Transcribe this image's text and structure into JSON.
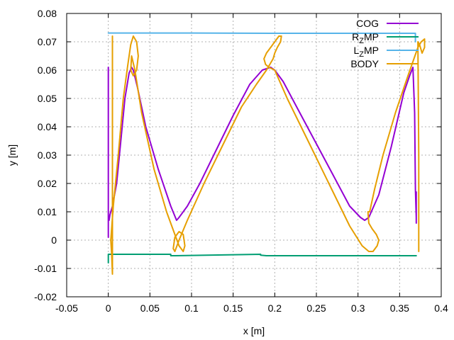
{
  "chart_data": {
    "type": "line",
    "xlabel": "x [m]",
    "ylabel": "y [m]",
    "xlim": [
      -0.05,
      0.4
    ],
    "ylim": [
      -0.02,
      0.08
    ],
    "xticks": [
      "-0.05",
      "0",
      "0.05",
      "0.1",
      "0.15",
      "0.2",
      "0.25",
      "0.3",
      "0.35",
      "0.4"
    ],
    "xtick_values": [
      -0.05,
      0,
      0.05,
      0.1,
      0.15,
      0.2,
      0.25,
      0.3,
      0.35,
      0.4
    ],
    "yticks": [
      "-0.02",
      "-0.01",
      "0",
      "0.01",
      "0.02",
      "0.03",
      "0.04",
      "0.05",
      "0.06",
      "0.07",
      "0.08"
    ],
    "ytick_values": [
      -0.02,
      -0.01,
      0,
      0.01,
      0.02,
      0.03,
      0.04,
      0.05,
      0.06,
      0.07,
      0.08
    ],
    "grid": true,
    "legend_position": "top-right",
    "series": [
      {
        "name": "COG",
        "legend_main": "COG",
        "legend_sub": "",
        "legend_suffix": "",
        "color": "#9400d3",
        "x": [
          0.0,
          0.0,
          0.0,
          0.0,
          0.001,
          0.002,
          0.005,
          0.01,
          0.015,
          0.02,
          0.025,
          0.028,
          0.03,
          0.035,
          0.045,
          0.06,
          0.075,
          0.082,
          0.085,
          0.095,
          0.11,
          0.13,
          0.15,
          0.17,
          0.185,
          0.195,
          0.2,
          0.21,
          0.23,
          0.25,
          0.27,
          0.29,
          0.303,
          0.308,
          0.313,
          0.325,
          0.34,
          0.355,
          0.362,
          0.366,
          0.368,
          0.369,
          0.37,
          0.37,
          0.37
        ],
        "y": [
          0.001,
          0.061,
          0.014,
          0.008,
          0.007,
          0.009,
          0.012,
          0.02,
          0.035,
          0.05,
          0.059,
          0.061,
          0.06,
          0.054,
          0.04,
          0.025,
          0.012,
          0.007,
          0.008,
          0.012,
          0.02,
          0.032,
          0.044,
          0.055,
          0.06,
          0.061,
          0.06,
          0.056,
          0.045,
          0.034,
          0.023,
          0.012,
          0.008,
          0.007,
          0.008,
          0.016,
          0.033,
          0.052,
          0.058,
          0.061,
          0.045,
          0.018,
          0.008,
          0.006,
          0.017
        ]
      },
      {
        "name": "RZMP",
        "legend_main": "R",
        "legend_sub": "Z",
        "legend_suffix": "MP",
        "color": "#009e73",
        "x": [
          0.0,
          0.0,
          0.0,
          0.075,
          0.075,
          0.08,
          0.183,
          0.183,
          0.19,
          0.305,
          0.305,
          0.31,
          0.37
        ],
        "y": [
          -0.008,
          -0.0055,
          -0.005,
          -0.005,
          -0.0055,
          -0.0055,
          -0.005,
          -0.0053,
          -0.0055,
          -0.0055,
          -0.0055,
          -0.0055,
          -0.0055
        ]
      },
      {
        "name": "LZMP",
        "legend_main": "L",
        "legend_sub": "Z",
        "legend_suffix": "MP",
        "color": "#56b4e9",
        "x": [
          0.0,
          0.1,
          0.2,
          0.3,
          0.369,
          0.369,
          0.369
        ],
        "y": [
          0.0731,
          0.0731,
          0.073,
          0.073,
          0.073,
          0.07,
          0.071
        ]
      },
      {
        "name": "BODY",
        "legend_main": "BODY",
        "legend_sub": "",
        "legend_suffix": "",
        "color": "#e69f00",
        "x": [
          0.005,
          0.005,
          0.004,
          0.003,
          0.006,
          0.012,
          0.018,
          0.023,
          0.027,
          0.03,
          0.034,
          0.036,
          0.034,
          0.03,
          0.027,
          0.028,
          0.032,
          0.04,
          0.055,
          0.07,
          0.08,
          0.085,
          0.09,
          0.092,
          0.09,
          0.085,
          0.08,
          0.078,
          0.08,
          0.085,
          0.095,
          0.115,
          0.14,
          0.16,
          0.178,
          0.19,
          0.198,
          0.2,
          0.203,
          0.207,
          0.208,
          0.205,
          0.2,
          0.195,
          0.19,
          0.187,
          0.189,
          0.193,
          0.2,
          0.215,
          0.24,
          0.265,
          0.29,
          0.305,
          0.313,
          0.318,
          0.323,
          0.325,
          0.322,
          0.317,
          0.313,
          0.312,
          0.314,
          0.32,
          0.33,
          0.345,
          0.36,
          0.372,
          0.376,
          0.38,
          0.38,
          0.377,
          0.374,
          0.372,
          0.373,
          0.373
        ],
        "y": [
          0.072,
          -0.012,
          -0.005,
          0.0,
          0.012,
          0.03,
          0.05,
          0.061,
          0.069,
          0.072,
          0.07,
          0.065,
          0.06,
          0.058,
          0.06,
          0.065,
          0.06,
          0.045,
          0.025,
          0.01,
          0.002,
          -0.002,
          -0.004,
          -0.002,
          0.002,
          0.003,
          0.001,
          -0.003,
          -0.004,
          0.0,
          0.007,
          0.02,
          0.035,
          0.047,
          0.055,
          0.06,
          0.064,
          0.066,
          0.068,
          0.07,
          0.072,
          0.072,
          0.07,
          0.068,
          0.066,
          0.064,
          0.062,
          0.061,
          0.06,
          0.05,
          0.035,
          0.02,
          0.005,
          -0.002,
          -0.004,
          -0.004,
          -0.002,
          0.0,
          0.002,
          0.004,
          0.006,
          0.01,
          0.01,
          0.018,
          0.03,
          0.045,
          0.058,
          0.068,
          0.07,
          0.071,
          0.068,
          0.066,
          0.069,
          0.07,
          0.03,
          -0.004
        ]
      }
    ]
  }
}
